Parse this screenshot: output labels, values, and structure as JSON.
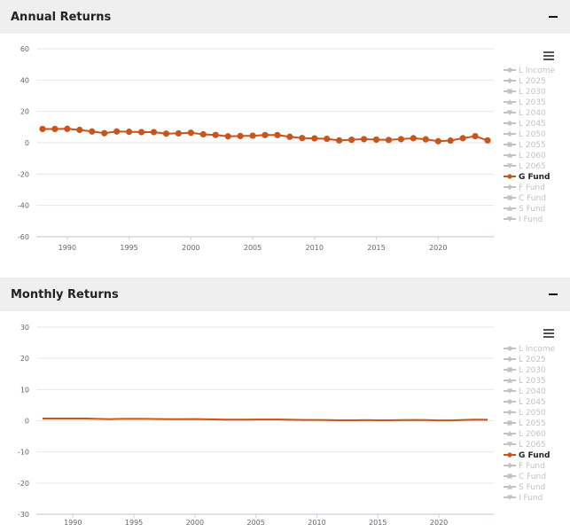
{
  "panels": {
    "annual": {
      "title": "Annual Returns",
      "collapse_symbol": "−"
    },
    "monthly": {
      "title": "Monthly Returns",
      "collapse_symbol": "−"
    }
  },
  "colors": {
    "active_series": "#c8561c",
    "inactive_legend": "#c3c3c3",
    "grid": "#e6e6e6",
    "header_bg": "#efefef"
  },
  "legend_items": [
    {
      "name": "L Income",
      "active": false
    },
    {
      "name": "L 2025",
      "active": false
    },
    {
      "name": "L 2030",
      "active": false
    },
    {
      "name": "L 2035",
      "active": false
    },
    {
      "name": "L 2040",
      "active": false
    },
    {
      "name": "L 2045",
      "active": false
    },
    {
      "name": "L 2050",
      "active": false
    },
    {
      "name": "L 2055",
      "active": false
    },
    {
      "name": "L 2060",
      "active": false
    },
    {
      "name": "L 2065",
      "active": false
    },
    {
      "name": "G Fund",
      "active": true
    },
    {
      "name": "F Fund",
      "active": false
    },
    {
      "name": "C Fund",
      "active": false
    },
    {
      "name": "S Fund",
      "active": false
    },
    {
      "name": "I Fund",
      "active": false
    }
  ],
  "menu_icon": "hamburger-menu-icon",
  "chart_data": [
    {
      "id": "annual",
      "type": "line",
      "xlim": [
        1987.5,
        2024.5
      ],
      "ylim": [
        -60,
        60
      ],
      "x_ticks": [
        1990,
        1995,
        2000,
        2005,
        2010,
        2015,
        2020
      ],
      "y_ticks": [
        60,
        40,
        20,
        0,
        -20,
        -40,
        -60
      ],
      "grid": true,
      "legend_position": "right",
      "series": [
        {
          "name": "G Fund",
          "x": [
            1988,
            1989,
            1990,
            1991,
            1992,
            1993,
            1994,
            1995,
            1996,
            1997,
            1998,
            1999,
            2000,
            2001,
            2002,
            2003,
            2004,
            2005,
            2006,
            2007,
            2008,
            2009,
            2010,
            2011,
            2012,
            2013,
            2014,
            2015,
            2016,
            2017,
            2018,
            2019,
            2020,
            2021,
            2022,
            2023,
            2024
          ],
          "values": [
            8.8,
            8.8,
            8.9,
            8.2,
            7.2,
            6.1,
            7.2,
            7.0,
            6.8,
            6.8,
            5.8,
            6.0,
            6.4,
            5.4,
            5.0,
            4.1,
            4.3,
            4.5,
            4.9,
            4.9,
            3.8,
            3.0,
            2.8,
            2.5,
            1.5,
            1.9,
            2.3,
            2.0,
            1.8,
            2.3,
            2.9,
            2.2,
            1.0,
            1.4,
            2.9,
            4.2,
            1.5
          ]
        }
      ]
    },
    {
      "id": "monthly",
      "type": "line",
      "xlim": [
        1987,
        2024.5
      ],
      "ylim": [
        -30,
        30
      ],
      "x_ticks": [
        1990,
        1995,
        2000,
        2005,
        2010,
        2015,
        2020
      ],
      "y_ticks": [
        30,
        20,
        10,
        0,
        -10,
        -20,
        -30
      ],
      "grid": true,
      "legend_position": "right",
      "series": [
        {
          "name": "G Fund",
          "x": [
            1987.5,
            1988,
            1989,
            1990,
            1991,
            1992,
            1993,
            1994,
            1995,
            1996,
            1997,
            1998,
            1999,
            2000,
            2001,
            2002,
            2003,
            2004,
            2005,
            2006,
            2007,
            2008,
            2009,
            2010,
            2011,
            2012,
            2013,
            2014,
            2015,
            2016,
            2017,
            2018,
            2019,
            2020,
            2021,
            2022,
            2023,
            2024
          ],
          "values": [
            0.7,
            0.7,
            0.7,
            0.7,
            0.7,
            0.6,
            0.5,
            0.6,
            0.6,
            0.6,
            0.55,
            0.5,
            0.5,
            0.55,
            0.45,
            0.4,
            0.35,
            0.35,
            0.4,
            0.4,
            0.4,
            0.3,
            0.25,
            0.25,
            0.2,
            0.15,
            0.15,
            0.2,
            0.15,
            0.15,
            0.2,
            0.25,
            0.2,
            0.1,
            0.1,
            0.25,
            0.35,
            0.3
          ]
        }
      ]
    }
  ]
}
